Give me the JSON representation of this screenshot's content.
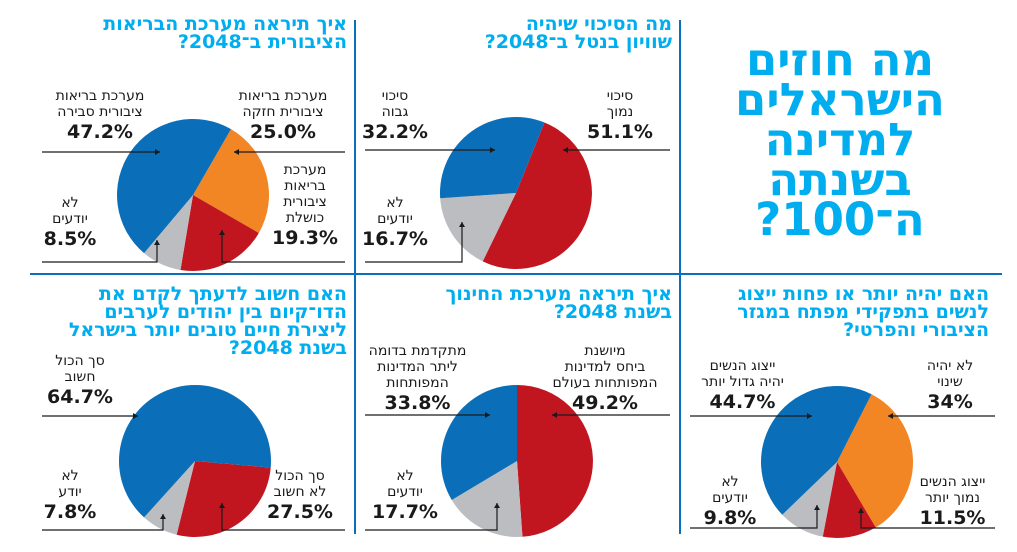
{
  "main_title": {
    "lines": [
      "מה חוזים",
      "הישראלים",
      "למדינה",
      "בשנתה",
      "ה־100?"
    ]
  },
  "colors": {
    "accent": "#00aeef",
    "divider": "#0a6fb8",
    "blue": "#0a6fb8",
    "red": "#c1161f",
    "orange": "#f28524",
    "gray": "#bcbdc0",
    "text": "#1a1a1a"
  },
  "chart_data": [
    {
      "type": "pie",
      "id": "health",
      "title": "איך תיראה מערכת הבריאות הציבורית ב־2048?",
      "title_lines": [
        "איך תיראה מערכת הבריאות",
        "הציבורית ב־2048?"
      ],
      "slices": [
        {
          "label": "מערכת בריאות ציבורית חזקה",
          "label_lines": [
            "מערכת בריאות",
            "ציבורית חזקה"
          ],
          "value": 25.0,
          "display": "25.0%",
          "color": "orange"
        },
        {
          "label": "מערכת בריאות ציבורית כושלת",
          "label_lines": [
            "מערכת",
            "בריאות",
            "ציבורית",
            "כושלת"
          ],
          "value": 19.3,
          "display": "19.3%",
          "color": "red"
        },
        {
          "label": "לא יודעים",
          "label_lines": [
            "לא",
            "יודעים"
          ],
          "value": 8.5,
          "display": "8.5%",
          "color": "gray"
        },
        {
          "label": "מערכת בריאות ציבורית סבירה",
          "label_lines": [
            "מערכת בריאות",
            "ציבורית סבירה"
          ],
          "value": 47.2,
          "display": "47.2%",
          "color": "blue"
        }
      ]
    },
    {
      "type": "pie",
      "id": "cancer",
      "title": "מה הסיכוי שיהיה שוויון בנטל ב־2048?",
      "title_lines": [
        "מה הסיכוי שיהיה",
        "שוויון בנטל ב־2048?"
      ],
      "slices": [
        {
          "label": "סיכוי נמוך",
          "label_lines": [
            "סיכוי",
            "נמוך"
          ],
          "value": 51.1,
          "display": "51.1%",
          "color": "red"
        },
        {
          "label": "לא יודעים",
          "label_lines": [
            "לא",
            "יודעים"
          ],
          "value": 16.7,
          "display": "16.7%",
          "color": "gray"
        },
        {
          "label": "סיכוי גבוה",
          "label_lines": [
            "סיכוי",
            "גבוה"
          ],
          "value": 32.2,
          "display": "32.2%",
          "color": "blue"
        }
      ]
    },
    {
      "type": "pie",
      "id": "coexistence",
      "title": "האם חשוב לדעתך לקדם את הדו־קיום בין יהודים לערבים ליצירת חיים טובים יותר בישראל בשנת 2048?",
      "title_lines": [
        "האם חשוב לדעתך לקדם את",
        "הדו־קיום בין יהודים לערבים",
        "ליצירת חיים טובים יותר בישראל",
        "בשנת 2048?"
      ],
      "slices": [
        {
          "label": "סך הכול לא חשוב",
          "label_lines": [
            "סך הכול",
            "לא חשוב"
          ],
          "value": 27.5,
          "display": "27.5%",
          "color": "red"
        },
        {
          "label": "לא יודע",
          "label_lines": [
            "לא",
            "יודע"
          ],
          "value": 7.8,
          "display": "7.8%",
          "color": "gray"
        },
        {
          "label": "סך הכול חשוב",
          "label_lines": [
            "סך הכול",
            "חשוב"
          ],
          "value": 64.7,
          "display": "64.7%",
          "color": "blue"
        }
      ]
    },
    {
      "type": "pie",
      "id": "education",
      "title": "איך תיראה מערכת החינוך בשנת 2048?",
      "title_lines": [
        "איך תיראה מערכת החינוך",
        "בשנת 2048?"
      ],
      "slices": [
        {
          "label": "מיושנת ביחס למדינות המפותחות בעולם",
          "label_lines": [
            "מיושנת",
            "ביחס למדינות",
            "המפותחות בעולם"
          ],
          "value": 49.2,
          "display": "49.2%",
          "color": "red"
        },
        {
          "label": "לא יודעים",
          "label_lines": [
            "לא",
            "יודעים"
          ],
          "value": 17.7,
          "display": "17.7%",
          "color": "gray"
        },
        {
          "label": "מתקדמת בדומה ליתר המדינות המפותחות",
          "label_lines": [
            "מתקדמת בדומה",
            "ליתר המדינות",
            "המפותחות"
          ],
          "value": 33.8,
          "display": "33.8%",
          "color": "blue"
        }
      ]
    },
    {
      "type": "pie",
      "id": "women",
      "title": "האם יהיה יותר או פחות ייצוג לנשים בתפקידי מפתח במגזר הציבורי והפרטי?",
      "title_lines": [
        "האם יהיה יותר או פחות ייצוג",
        "לנשים בתפקידי מפתח במגזר",
        "הציבורי והפרטי?"
      ],
      "slices": [
        {
          "label": "לא יהיה שינוי",
          "label_lines": [
            "לא יהיה",
            "שינוי"
          ],
          "value": 34,
          "display": "34%",
          "color": "orange"
        },
        {
          "label": "ייצוג הנשים נמוך יותר",
          "label_lines": [
            "ייצוג הנשים",
            "נמוך יותר"
          ],
          "value": 11.5,
          "display": "11.5%",
          "color": "red"
        },
        {
          "label": "לא יודעים",
          "label_lines": [
            "לא",
            "יודעים"
          ],
          "value": 9.8,
          "display": "9.8%",
          "color": "gray"
        },
        {
          "label": "ייצוג הנשים יהיה גדול יותר",
          "label_lines": [
            "ייצוג הנשים",
            "יהיה גדול יותר"
          ],
          "value": 44.7,
          "display": "44.7%",
          "color": "blue"
        }
      ]
    }
  ]
}
